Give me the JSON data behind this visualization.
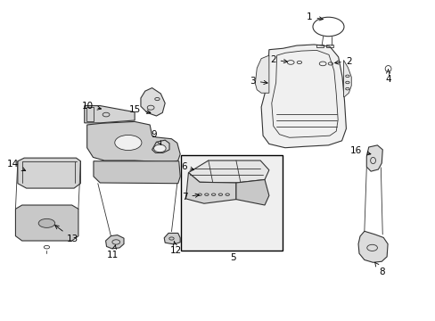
{
  "background_color": "#ffffff",
  "line_color": "#333333",
  "text_color": "#000000",
  "label_fontsize": 7.5
}
